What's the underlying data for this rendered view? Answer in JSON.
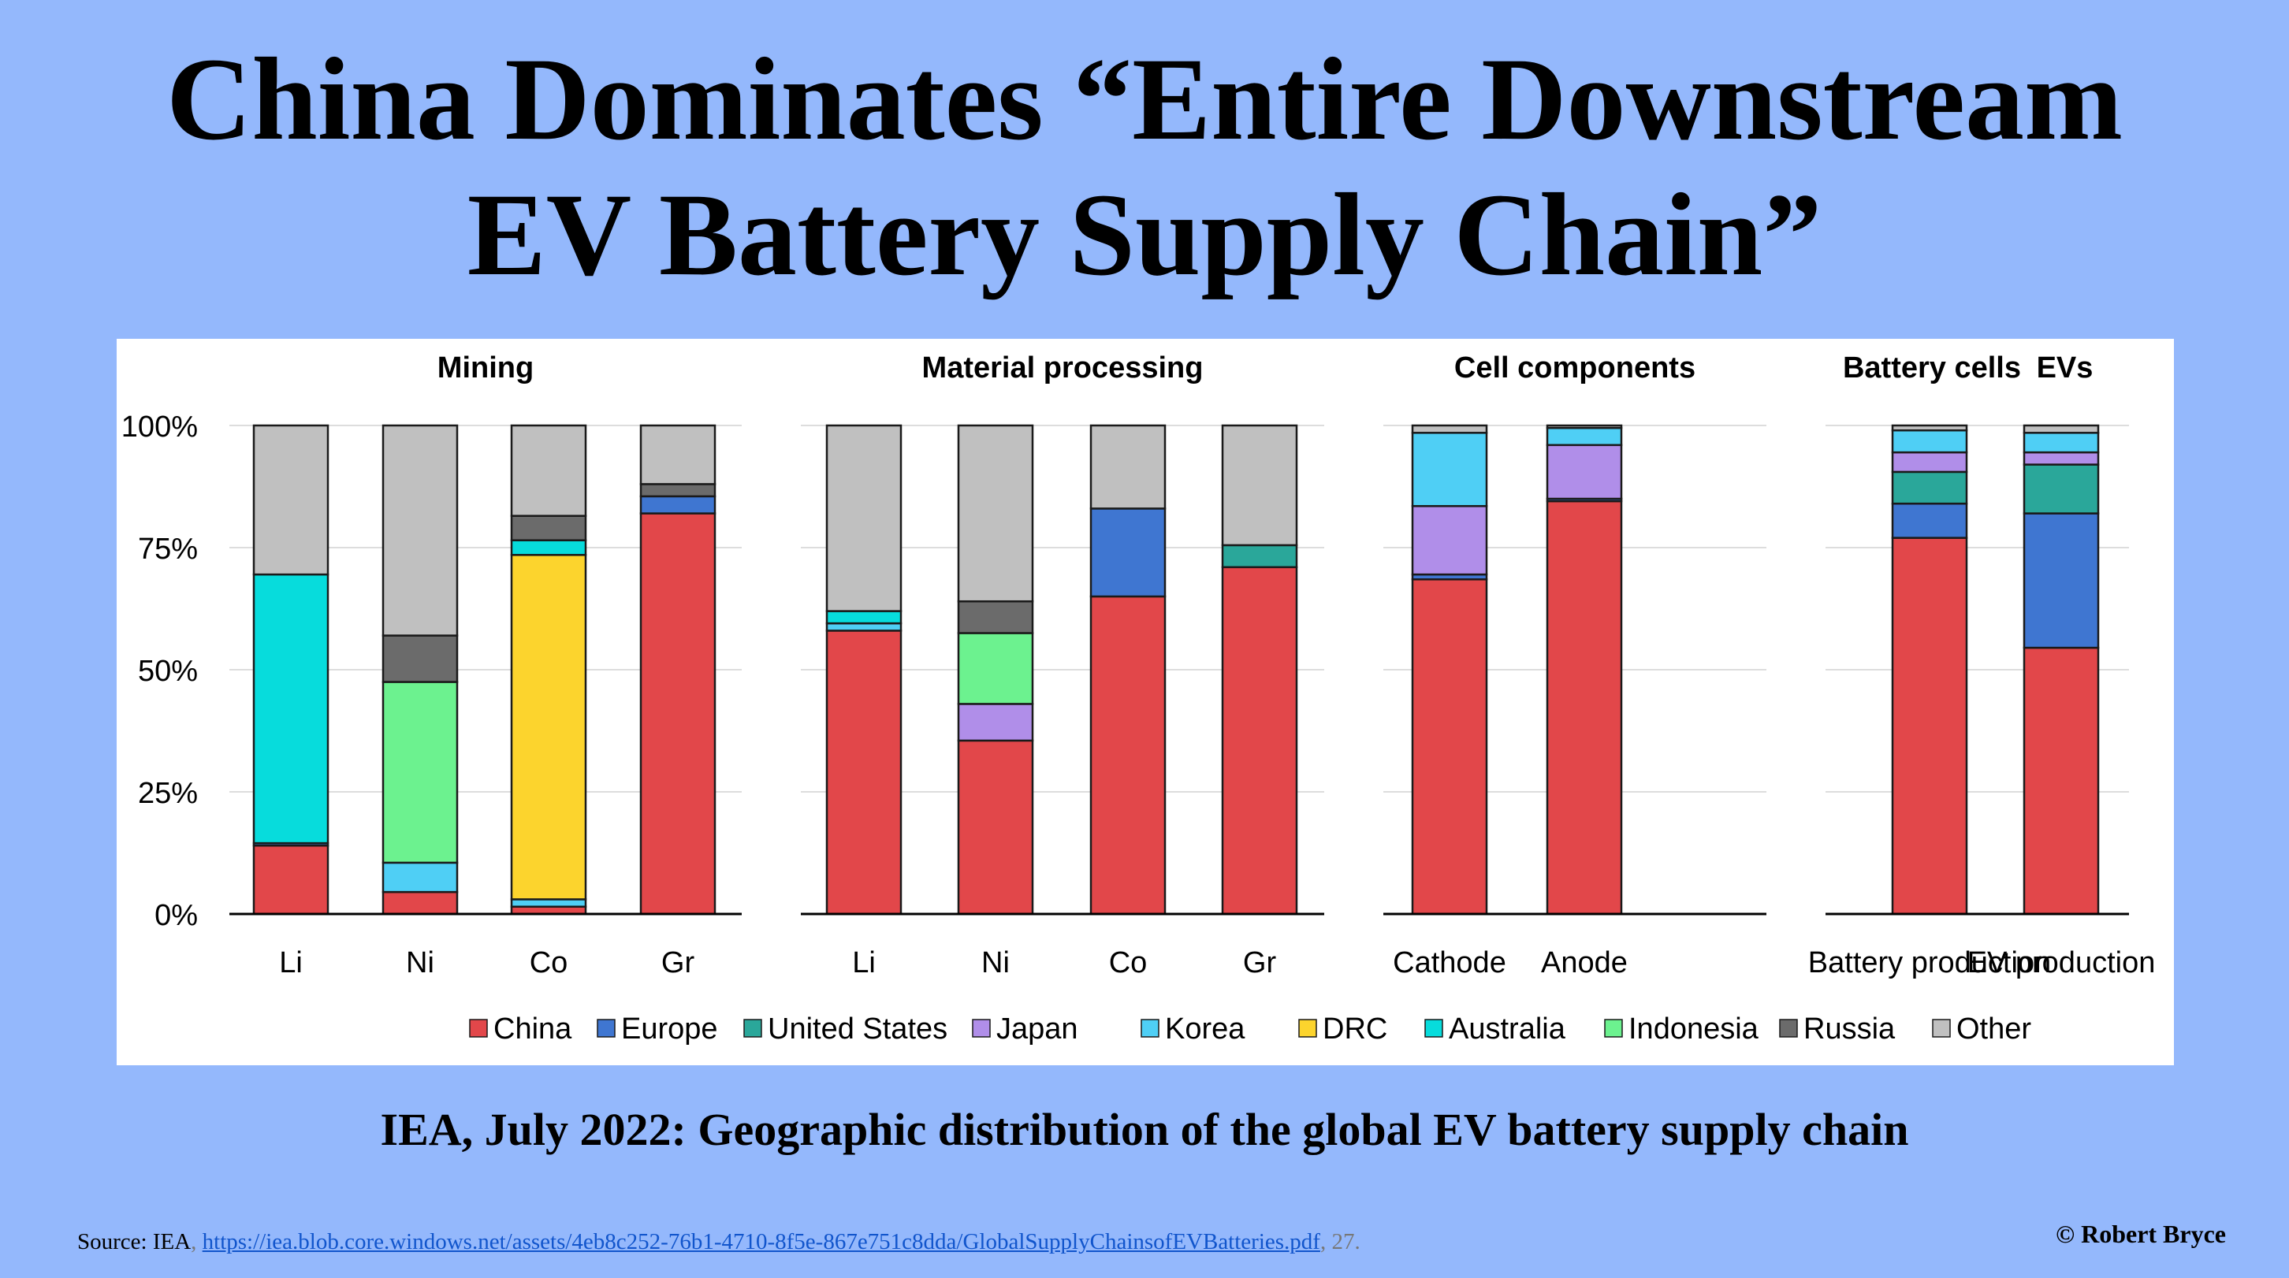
{
  "page": {
    "title_line1": "China Dominates “Entire Downstream",
    "title_line2": "EV Battery Supply Chain”",
    "caption": "IEA, July 2022: Geographic distribution of the global EV battery supply chain",
    "source_prefix": "Source: IEA",
    "source_sep": ", ",
    "source_url": "https://iea.blob.core.windows.net/assets/4eb8c252-76b1-4710-8f5e-867e751c8dda/GlobalSupplyChainsofEVBatteries.pdf",
    "source_suffix": ", 27.",
    "copyright": "© Robert Bryce"
  },
  "chart_data": {
    "type": "bar",
    "stacked": true,
    "ylim": [
      0,
      100
    ],
    "yticks": [
      "0%",
      "25%",
      "50%",
      "75%",
      "100%"
    ],
    "grid": true,
    "legend_position": "bottom",
    "legend": [
      "China",
      "Europe",
      "United States",
      "Japan",
      "Korea",
      "DRC",
      "Australia",
      "Indonesia",
      "Russia",
      "Other"
    ],
    "colors": {
      "China": "#e2474a",
      "Europe": "#3f76d1",
      "United States": "#2aa79a",
      "Japan": "#b08ee9",
      "Korea": "#4fcff5",
      "DRC": "#fcd42d",
      "Australia": "#07dcdc",
      "Indonesia": "#6cf28f",
      "Russia": "#6b6b6b",
      "Other": "#c0c0c0"
    },
    "groups": [
      {
        "title": "Mining",
        "bars": [
          {
            "label": "Li",
            "segments": {
              "Australia": 55,
              "China": 14,
              "Europe": 0.5,
              "Other": 30.5
            }
          },
          {
            "label": "Ni",
            "segments": {
              "Indonesia": 37,
              "Korea": 6,
              "China": 4.5,
              "Russia": 9.5,
              "Other": 43
            }
          },
          {
            "label": "Co",
            "segments": {
              "DRC": 70.5,
              "Korea": 1.5,
              "Australia": 3,
              "China": 1.5,
              "Russia": 5,
              "Other": 18.5
            }
          },
          {
            "label": "Gr",
            "segments": {
              "China": 82,
              "Russia": 2.5,
              "Europe": 3.5,
              "Other": 12
            }
          }
        ]
      },
      {
        "title": "Material processing",
        "bars": [
          {
            "label": "Li",
            "segments": {
              "China": 58,
              "Australia": 2.5,
              "Korea": 1.5,
              "Other": 38
            }
          },
          {
            "label": "Ni",
            "segments": {
              "China": 35.5,
              "Indonesia": 14.5,
              "Japan": 7.5,
              "Russia": 6.5,
              "Other": 36
            }
          },
          {
            "label": "Co",
            "segments": {
              "China": 65,
              "Europe": 18,
              "Other": 17
            }
          },
          {
            "label": "Gr",
            "segments": {
              "China": 71,
              "United States": 4.5,
              "Other": 24.5
            }
          }
        ]
      },
      {
        "title": "Cell components",
        "bars": [
          {
            "label": "Cathode",
            "segments": {
              "China": 68.5,
              "Europe": 1,
              "Japan": 14,
              "Korea": 15,
              "Other": 1.5
            }
          },
          {
            "label": "Anode",
            "segments": {
              "China": 84.5,
              "Europe": 0.5,
              "Japan": 11,
              "Korea": 3.5,
              "Other": 0.5
            }
          }
        ]
      },
      {
        "title": "Battery cells",
        "bars": [
          {
            "label": "Battery production",
            "segments": {
              "China": 77,
              "Europe": 7,
              "United States": 6.5,
              "Korea": 4.5,
              "Japan": 4,
              "Other": 1
            }
          }
        ]
      },
      {
        "title": "EVs",
        "bars": [
          {
            "label": "EV production",
            "segments": {
              "China": 54.5,
              "Europe": 27.5,
              "United States": 10,
              "Korea": 4,
              "Japan": 2.5,
              "Other": 1.5
            }
          }
        ]
      }
    ]
  }
}
